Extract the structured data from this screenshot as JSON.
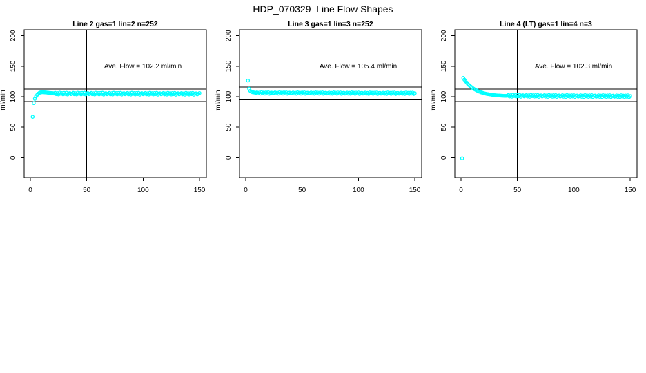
{
  "title": "HDP_070329  Line Flow Shapes",
  "colors": {
    "background": "#ffffff",
    "axis": "#000000",
    "text": "#000000",
    "points": "#00ffff"
  },
  "chart_data": [
    {
      "type": "scatter",
      "title": "Line 2 gas=1 lin=2 n=252",
      "annotation": "Ave. Flow =  102.2  ml/min",
      "ave_flow_ml_min": 102.2,
      "n": 252,
      "ylabel": "ml/min",
      "xticks": [
        0,
        50,
        100,
        150
      ],
      "yticks": [
        0,
        50,
        100,
        150,
        200
      ],
      "xlim": [
        -5.5,
        156.1
      ],
      "ylim": [
        -32.5,
        209.9
      ],
      "grid": false,
      "ref_vline_x": 50,
      "ref_hlines_y": [
        112.4,
        92.0
      ],
      "marker": "open-circle",
      "marker_color": "#00ffff",
      "head_points": [
        [
          2,
          67
        ],
        [
          3,
          89.5
        ],
        [
          4,
          96.5
        ],
        [
          5,
          100.5
        ],
        [
          6,
          103
        ],
        [
          7,
          105
        ],
        [
          8,
          106.3
        ],
        [
          9,
          107
        ],
        [
          10,
          107.3
        ],
        [
          11,
          107.4
        ],
        [
          12,
          107.3
        ],
        [
          13,
          107.1
        ],
        [
          14,
          106.9
        ],
        [
          15,
          106.7
        ],
        [
          16,
          106.5
        ],
        [
          17,
          106.3
        ],
        [
          18,
          106.1
        ],
        [
          19,
          105.9
        ],
        [
          20,
          105.8
        ]
      ],
      "band": {
        "x_from": 21,
        "x_to": 150,
        "y_base": 105.2,
        "y_end": 104.8,
        "jitter": [
          0,
          1.2,
          -1,
          0.6,
          -1.4,
          1.5,
          -0.4,
          0.9,
          -1.2,
          1.1,
          -0.6,
          1.4,
          -1.5,
          0.3,
          0.8,
          -0.9
        ]
      }
    },
    {
      "type": "scatter",
      "title": "Line 3 gas=1 lin=3 n=252",
      "annotation": "Ave. Flow =  105.4  ml/min",
      "ave_flow_ml_min": 105.4,
      "n": 252,
      "ylabel": "ml/min",
      "xticks": [
        0,
        50,
        100,
        150
      ],
      "yticks": [
        0,
        50,
        100,
        150,
        200
      ],
      "xlim": [
        -5.5,
        156.1
      ],
      "ylim": [
        -32.5,
        209.9
      ],
      "grid": false,
      "ref_vline_x": 50,
      "ref_hlines_y": [
        115.9,
        94.9
      ],
      "marker": "open-circle",
      "marker_color": "#00ffff",
      "head_points": [
        [
          2,
          126.5
        ],
        [
          3,
          113
        ],
        [
          4,
          109.5
        ],
        [
          5,
          108.2
        ],
        [
          6,
          107.4
        ],
        [
          7,
          107
        ],
        [
          8,
          106.8
        ]
      ],
      "band": {
        "x_from": 9,
        "x_to": 150,
        "y_base": 106.2,
        "y_end": 105.6,
        "jitter": [
          0,
          0.9,
          -0.8,
          0.5,
          -1.1,
          1.2,
          -0.3,
          0.7,
          -1,
          0.9,
          -0.5,
          1.1,
          -1.2,
          0.2,
          0.6,
          -0.7
        ]
      }
    },
    {
      "type": "scatter",
      "title": "Line 4 (LT) gas=1 lin=4 n=3",
      "annotation": "Ave. Flow =  102.3  ml/min",
      "ave_flow_ml_min": 102.3,
      "n": 3,
      "ylabel": "ml/min",
      "xticks": [
        0,
        50,
        100,
        150
      ],
      "yticks": [
        0,
        50,
        100,
        150,
        200
      ],
      "xlim": [
        -5.5,
        156.1
      ],
      "ylim": [
        -32.5,
        209.9
      ],
      "grid": false,
      "ref_vline_x": 50,
      "ref_hlines_y": [
        112.5,
        92.1
      ],
      "marker": "open-circle",
      "marker_color": "#00ffff",
      "head_points": [
        [
          1,
          -1
        ],
        [
          2,
          130.8
        ],
        [
          3,
          128
        ],
        [
          4,
          125.5
        ],
        [
          5,
          123.2
        ],
        [
          6,
          121.1
        ],
        [
          7,
          119.3
        ],
        [
          8,
          117.6
        ],
        [
          9,
          116.1
        ],
        [
          10,
          114.7
        ],
        [
          11,
          113.4
        ],
        [
          12,
          112.3
        ],
        [
          13,
          111.2
        ],
        [
          14,
          110.2
        ],
        [
          15,
          109.3
        ],
        [
          16,
          108.5
        ],
        [
          17,
          107.8
        ],
        [
          18,
          107.1
        ],
        [
          19,
          106.5
        ],
        [
          20,
          105.9
        ],
        [
          21,
          105.4
        ],
        [
          22,
          105
        ],
        [
          23,
          104.6
        ],
        [
          24,
          104.2
        ],
        [
          25,
          103.9
        ],
        [
          26,
          103.6
        ],
        [
          27,
          103.3
        ],
        [
          28,
          103
        ],
        [
          29,
          102.8
        ],
        [
          30,
          102.6
        ],
        [
          31,
          102.4
        ],
        [
          32,
          102.2
        ],
        [
          33,
          102
        ],
        [
          34,
          101.9
        ],
        [
          35,
          101.8
        ],
        [
          36,
          101.7
        ],
        [
          37,
          101.6
        ],
        [
          38,
          101.5
        ],
        [
          39,
          101.4
        ],
        [
          40,
          101.4
        ]
      ],
      "band": {
        "x_from": 41,
        "x_to": 150,
        "y_base": 101.6,
        "y_end": 100.8,
        "jitter": [
          0,
          1.3,
          -1.2,
          0.8,
          -1.5,
          1.6,
          -0.5,
          1,
          -1.3,
          1.2,
          -0.8,
          1.5,
          -1.6,
          0.4,
          0.9,
          -1
        ]
      }
    }
  ]
}
